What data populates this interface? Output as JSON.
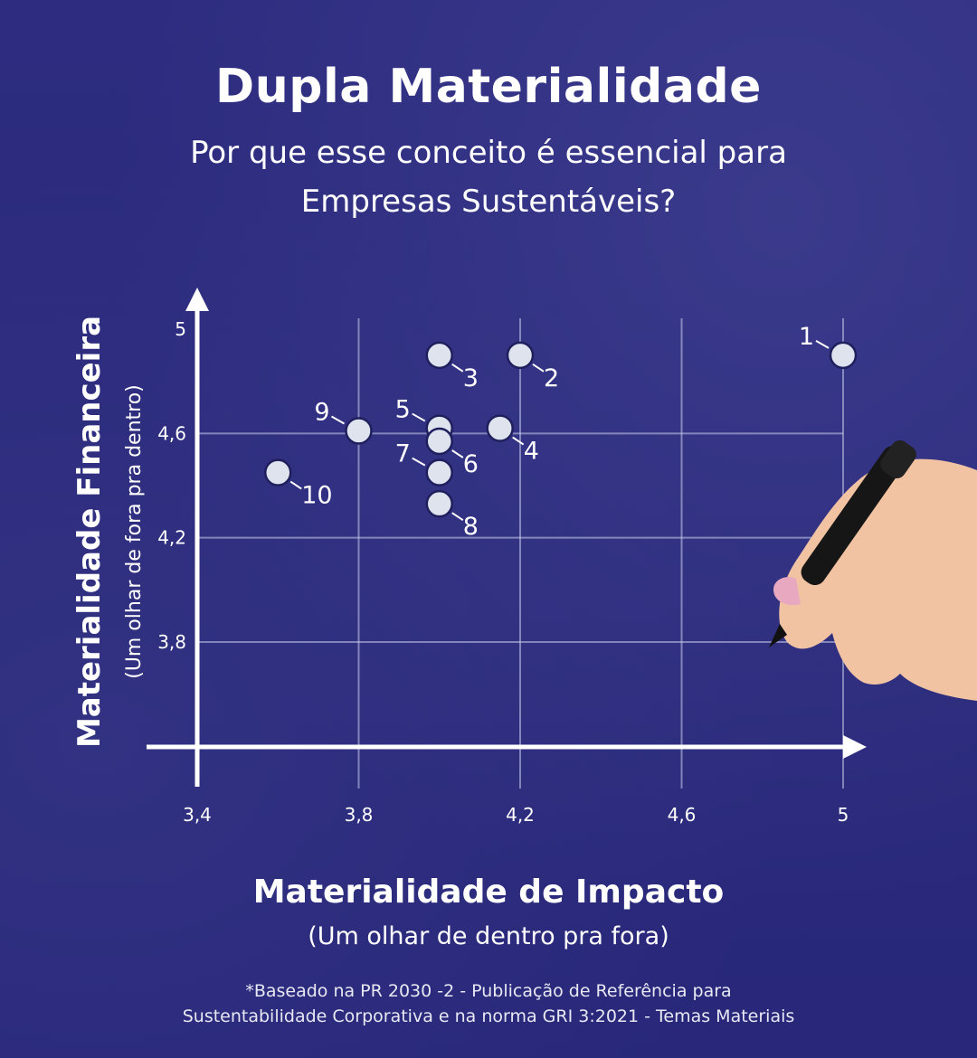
{
  "title": "Dupla Materialidade",
  "subtitle": "Por que esse conceito é essencial para Empresas Sustentáveis?",
  "footnote": "*Baseado na PR 2030 -2 - Publicação de Referência para Sustentabilidade Corporativa e na norma GRI 3:2021 - Temas Materiais",
  "colors": {
    "background": "#2b2a7c",
    "point": "#dfe3ee",
    "point_stroke": "#1f1f5e",
    "axis": "#ffffff"
  },
  "chart_data": {
    "type": "scatter",
    "xlabel": "Materialidade de Impacto",
    "xlabel_sub": "(Um olhar de dentro pra fora)",
    "ylabel": "Materialidade Financeira",
    "ylabel_sub": "(Um olhar de fora pra dentro)",
    "x_ticks": [
      "3,4",
      "3,8",
      "4,2",
      "4,6",
      "5"
    ],
    "x_tick_values": [
      3.4,
      3.8,
      4.2,
      4.6,
      5.0
    ],
    "y_ticks": [
      "3,8",
      "4,2",
      "4,6",
      "5"
    ],
    "y_tick_values": [
      3.8,
      4.2,
      4.6,
      5.0
    ],
    "xlim": [
      3.4,
      5.0
    ],
    "ylim": [
      3.4,
      5.05
    ],
    "grid": true,
    "points": [
      {
        "label": "1",
        "x": 5.0,
        "y": 4.9,
        "label_side": "upper-left"
      },
      {
        "label": "2",
        "x": 4.2,
        "y": 4.9,
        "label_side": "lower-right"
      },
      {
        "label": "3",
        "x": 4.0,
        "y": 4.9,
        "label_side": "lower-right"
      },
      {
        "label": "4",
        "x": 4.15,
        "y": 4.62,
        "label_side": "lower-right"
      },
      {
        "label": "5",
        "x": 4.0,
        "y": 4.62,
        "label_side": "upper-left"
      },
      {
        "label": "6",
        "x": 4.0,
        "y": 4.57,
        "label_side": "lower-right"
      },
      {
        "label": "7",
        "x": 4.0,
        "y": 4.45,
        "label_side": "upper-left"
      },
      {
        "label": "8",
        "x": 4.0,
        "y": 4.33,
        "label_side": "lower-right"
      },
      {
        "label": "9",
        "x": 3.8,
        "y": 4.61,
        "label_side": "upper-left"
      },
      {
        "label": "10",
        "x": 3.6,
        "y": 4.45,
        "label_side": "lower-right"
      }
    ]
  }
}
